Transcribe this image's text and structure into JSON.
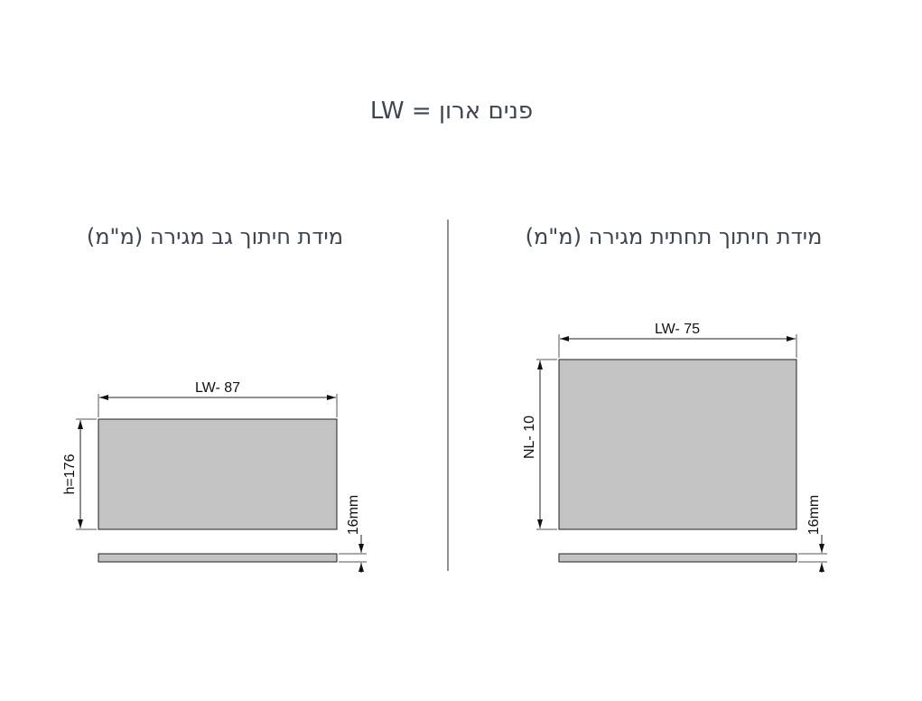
{
  "title": "פנים ארון = LW",
  "left_panel": {
    "heading": "מידת חיתוך גב מגירה (מ\"מ)",
    "width_label": "LW- 87",
    "height_label": "h=176",
    "thickness_label": "16mm"
  },
  "right_panel": {
    "heading": "מידת חיתוך תחתית מגירה (מ\"מ)",
    "width_label": "LW- 75",
    "height_label": "NL- 10",
    "thickness_label": "16mm"
  },
  "colors": {
    "panel_fill": "#c3c3c3",
    "text": "#3d4650",
    "line": "#222222"
  }
}
